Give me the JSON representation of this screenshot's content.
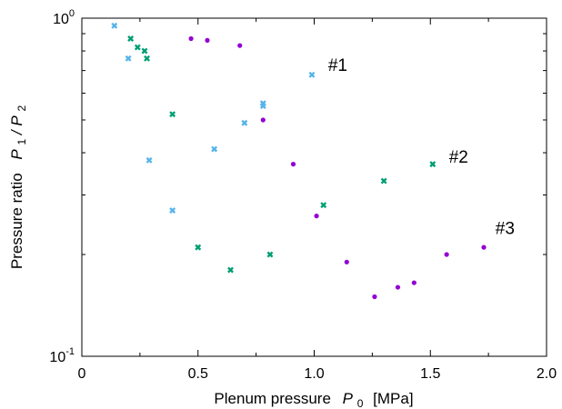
{
  "chart_data": {
    "type": "scatter",
    "title": "",
    "xlabel": {
      "prefix": "Plenum pressure",
      "symbol": "P",
      "subscript": "0",
      "unit": "[MPa]"
    },
    "ylabel": {
      "prefix": "Pressure ratio",
      "symbol_a": "P",
      "subscript_a": "1",
      "slash": "/",
      "symbol_b": "P",
      "subscript_b": "2"
    },
    "xlim": [
      0,
      2.0
    ],
    "ylim": [
      0.1,
      1.0
    ],
    "yscale": "log",
    "grid": false,
    "legend": "none",
    "x_ticks": [
      {
        "value": 0,
        "label": "0"
      },
      {
        "value": 0.5,
        "label": "0.5"
      },
      {
        "value": 1.0,
        "label": "1.0"
      },
      {
        "value": 1.5,
        "label": "1.5"
      },
      {
        "value": 2.0,
        "label": "2.0"
      }
    ],
    "y_ticks": [
      {
        "value": 0.1,
        "base": "10",
        "exp": "-1"
      },
      {
        "value": 1.0,
        "base": "10",
        "exp": "0"
      }
    ],
    "series": [
      {
        "name": "#1",
        "color": "#56B4E9",
        "marker": "cross",
        "label_pos": [
          1.06,
          0.73
        ],
        "points": [
          [
            0.14,
            0.95
          ],
          [
            0.2,
            0.76
          ],
          [
            0.29,
            0.38
          ],
          [
            0.39,
            0.27
          ],
          [
            0.57,
            0.41
          ],
          [
            0.7,
            0.49
          ],
          [
            0.78,
            0.55
          ],
          [
            0.78,
            0.56
          ],
          [
            0.99,
            0.68
          ]
        ]
      },
      {
        "name": "#2",
        "color": "#009E73",
        "marker": "cross",
        "label_pos": [
          1.58,
          0.39
        ],
        "points": [
          [
            0.21,
            0.87
          ],
          [
            0.24,
            0.82
          ],
          [
            0.27,
            0.8
          ],
          [
            0.28,
            0.76
          ],
          [
            0.39,
            0.52
          ],
          [
            0.5,
            0.21
          ],
          [
            0.64,
            0.18
          ],
          [
            0.81,
            0.2
          ],
          [
            1.04,
            0.28
          ],
          [
            1.3,
            0.33
          ],
          [
            1.51,
            0.37
          ]
        ]
      },
      {
        "name": "#3",
        "color": "#9400D3",
        "marker": "dot",
        "label_pos": [
          1.78,
          0.24
        ],
        "points": [
          [
            0.47,
            0.87
          ],
          [
            0.54,
            0.86
          ],
          [
            0.68,
            0.83
          ],
          [
            0.78,
            0.5
          ],
          [
            0.91,
            0.37
          ],
          [
            1.01,
            0.26
          ],
          [
            1.14,
            0.19
          ],
          [
            1.26,
            0.15
          ],
          [
            1.36,
            0.16
          ],
          [
            1.43,
            0.165
          ],
          [
            1.57,
            0.2
          ],
          [
            1.73,
            0.21
          ]
        ]
      }
    ]
  }
}
